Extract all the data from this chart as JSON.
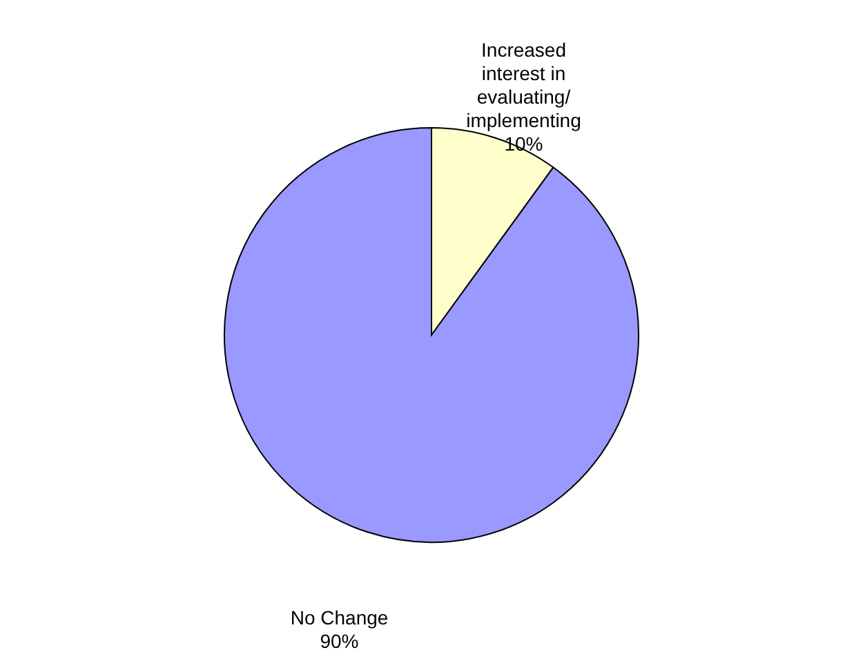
{
  "chart_data": {
    "type": "pie",
    "categories": [
      "Increased interest in evaluating/ implementing",
      "No Change"
    ],
    "values": [
      10,
      90
    ],
    "colors": [
      "#ffffcc",
      "#9999ff"
    ],
    "value_labels": [
      "10%",
      "90%"
    ]
  }
}
